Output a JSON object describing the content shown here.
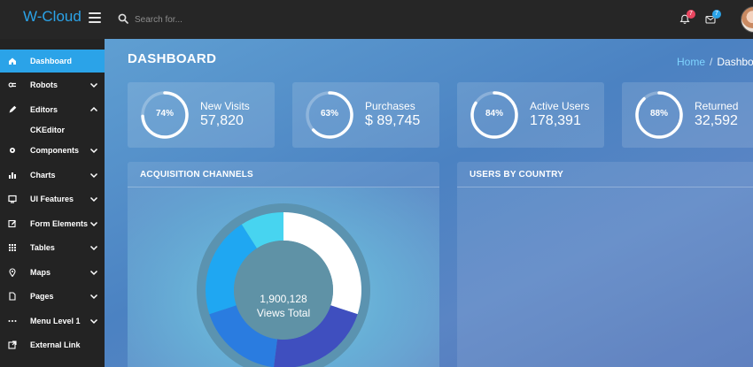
{
  "app": {
    "title": "W-Cloud"
  },
  "search": {
    "placeholder": "Search for..."
  },
  "header": {
    "notifications_count": "7",
    "messages_count": "7",
    "colors": {
      "accent": "#2ba3e8",
      "notif_badge": "#e8455f",
      "msg_badge": "#2ba3e8"
    }
  },
  "sidebar": {
    "items": [
      {
        "label": "Dashboard",
        "icon": "home-icon",
        "active": true
      },
      {
        "label": "Robots",
        "icon": "robot-icon",
        "chevron": "down"
      },
      {
        "label": "Editors",
        "icon": "pencil-icon",
        "chevron": "up"
      },
      {
        "label": "Components",
        "icon": "gear-icon",
        "chevron": "down"
      },
      {
        "label": "Charts",
        "icon": "bar-chart-icon",
        "chevron": "down"
      },
      {
        "label": "UI Features",
        "icon": "monitor-icon",
        "chevron": "down"
      },
      {
        "label": "Form Elements",
        "icon": "edit-form-icon",
        "chevron": "down"
      },
      {
        "label": "Tables",
        "icon": "grid-icon",
        "chevron": "down"
      },
      {
        "label": "Maps",
        "icon": "map-pin-icon",
        "chevron": "down"
      },
      {
        "label": "Pages",
        "icon": "file-icon",
        "chevron": "down"
      },
      {
        "label": "Menu Level 1",
        "icon": "more-icon",
        "chevron": "down"
      },
      {
        "label": "External Link",
        "icon": "external-link-icon"
      }
    ],
    "sub_items": [
      {
        "label": "CKEditor"
      }
    ]
  },
  "page": {
    "title": "DASHBOARD",
    "breadcrumb": {
      "home": "Home",
      "current": "Dashboard"
    }
  },
  "stats": [
    {
      "label": "New Visits",
      "value": "57,820",
      "percent_label": "74%",
      "percent": 74
    },
    {
      "label": "Purchases",
      "value": "$ 89,745",
      "percent_label": "63%",
      "percent": 63
    },
    {
      "label": "Active Users",
      "value": "178,391",
      "percent_label": "84%",
      "percent": 84
    },
    {
      "label": "Returned",
      "value": "32,592",
      "percent_label": "88%",
      "percent": 88
    }
  ],
  "panels": {
    "acquisition": {
      "title": "ACQUISITION CHANNELS"
    },
    "country": {
      "title": "USERS BY COUNTRY"
    }
  },
  "chart_data": {
    "type": "pie",
    "center_value": "1,900,128",
    "center_label": "Views Total",
    "slices": [
      {
        "value": 30,
        "color": "#ffffff"
      },
      {
        "value": 22,
        "color": "#3f4fbf"
      },
      {
        "value": 18,
        "color": "#2a7ce0"
      },
      {
        "value": 21,
        "color": "#1fa7f2"
      },
      {
        "value": 9,
        "color": "#47d4f0"
      }
    ]
  }
}
